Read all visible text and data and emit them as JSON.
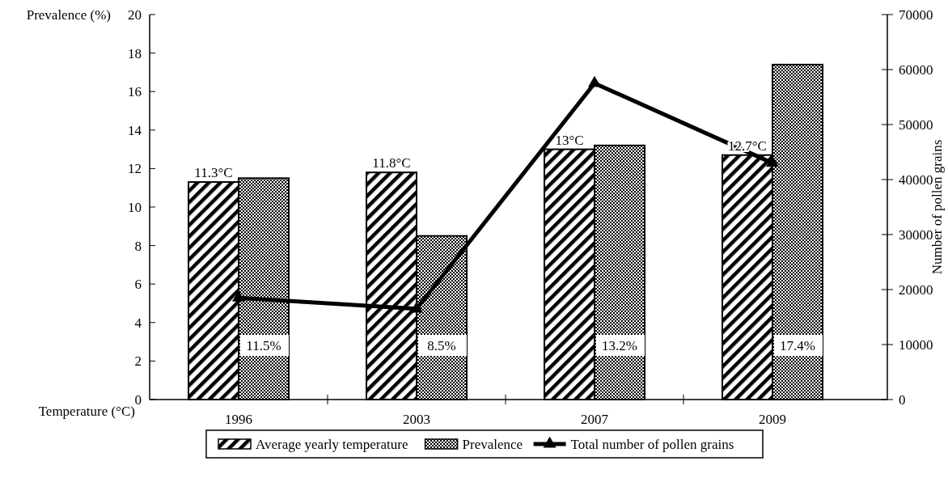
{
  "chart_data": {
    "type": "bar",
    "categories": [
      "1996",
      "2003",
      "2007",
      "2009"
    ],
    "series": [
      {
        "name": "Average yearly temperature",
        "color": "#000000",
        "values": [
          11.3,
          11.8,
          13,
          12.7
        ],
        "value_labels": [
          "11.3°C",
          "11.8°C",
          "13°C",
          "12.7°C"
        ]
      },
      {
        "name": "Prevalence",
        "color": "#000000",
        "values": [
          11.5,
          8.5,
          13.2,
          17.4
        ],
        "value_labels": [
          "11.5%",
          "8.5%",
          "13.2%",
          "17.4%"
        ]
      },
      {
        "name": "Total number of pollen grains",
        "type": "line",
        "axis": "y2",
        "color": "#000000",
        "values": [
          18500,
          16500,
          57500,
          43000
        ]
      }
    ],
    "ylabel": "Prevalence (%)",
    "y2label": "Number of pollen grains",
    "annotations": [
      "Temperature (°C)"
    ],
    "ylim": [
      0,
      20
    ],
    "yticks": [
      0,
      2,
      4,
      6,
      8,
      10,
      12,
      14,
      16,
      18,
      20
    ],
    "y2lim": [
      0,
      70000
    ],
    "y2ticks": [
      0,
      10000,
      20000,
      30000,
      40000,
      50000,
      60000,
      70000
    ],
    "marker": "triangle",
    "line_style": "solid",
    "legend": "bottom",
    "grid": false
  }
}
